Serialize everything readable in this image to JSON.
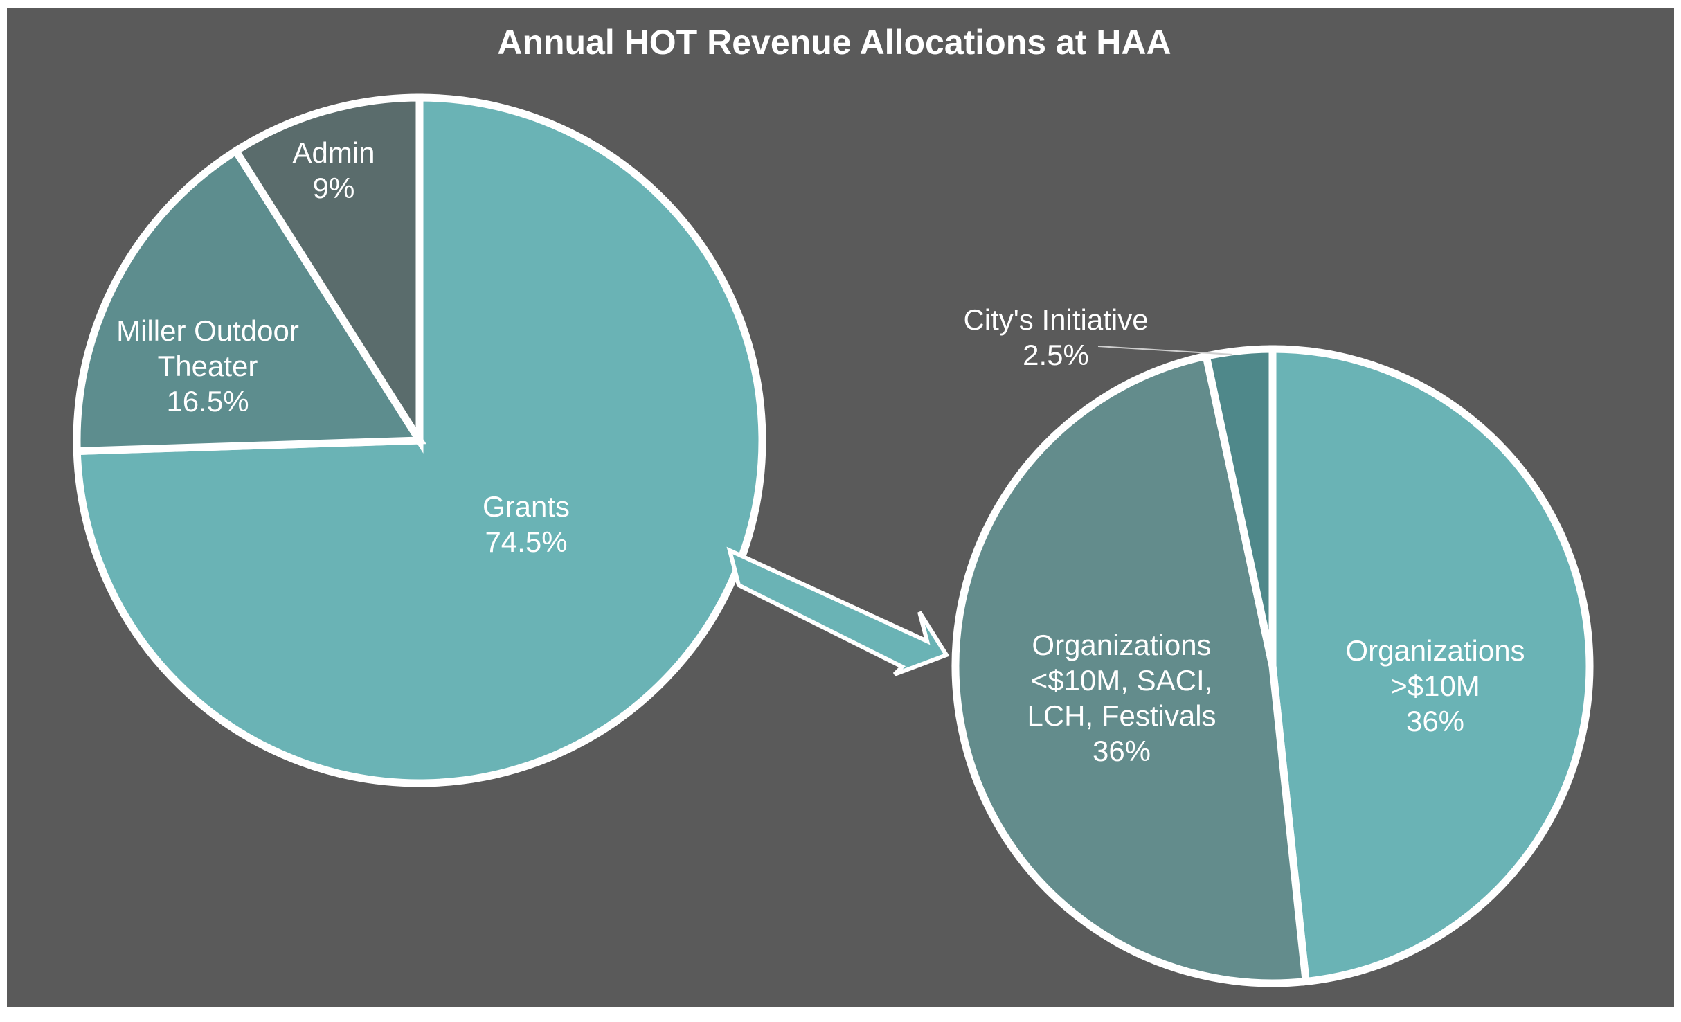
{
  "chart_data": [
    {
      "type": "pie",
      "title": "Annual HOT Revenue Allocations at HAA",
      "slices": [
        {
          "label": [
            "Grants",
            "74.5%"
          ],
          "value": 74.5,
          "color": "#6ab3b5"
        },
        {
          "label": [
            "Miller Outdoor",
            "Theater",
            "16.5%"
          ],
          "value": 16.5,
          "color": "#5d8d8e"
        },
        {
          "label": [
            "Admin",
            "9%"
          ],
          "value": 9,
          "color": "#5a6c6c"
        }
      ]
    },
    {
      "type": "pie",
      "slices": [
        {
          "label": [
            "Organizations",
            ">$10M",
            "36%"
          ],
          "value": 36,
          "color": "#6ab3b5"
        },
        {
          "label": [
            "Organizations",
            "<$10M, SACI,",
            "LCH, Festivals",
            "36%"
          ],
          "value": 36,
          "color": "#638c8c"
        },
        {
          "label": [
            "City's Initiative",
            "2.5%"
          ],
          "value": 2.5,
          "color": "#4f888a"
        }
      ]
    }
  ],
  "colors": {
    "background": "#5a5a5a",
    "border": "#ffffff",
    "text": "#ffffff"
  }
}
